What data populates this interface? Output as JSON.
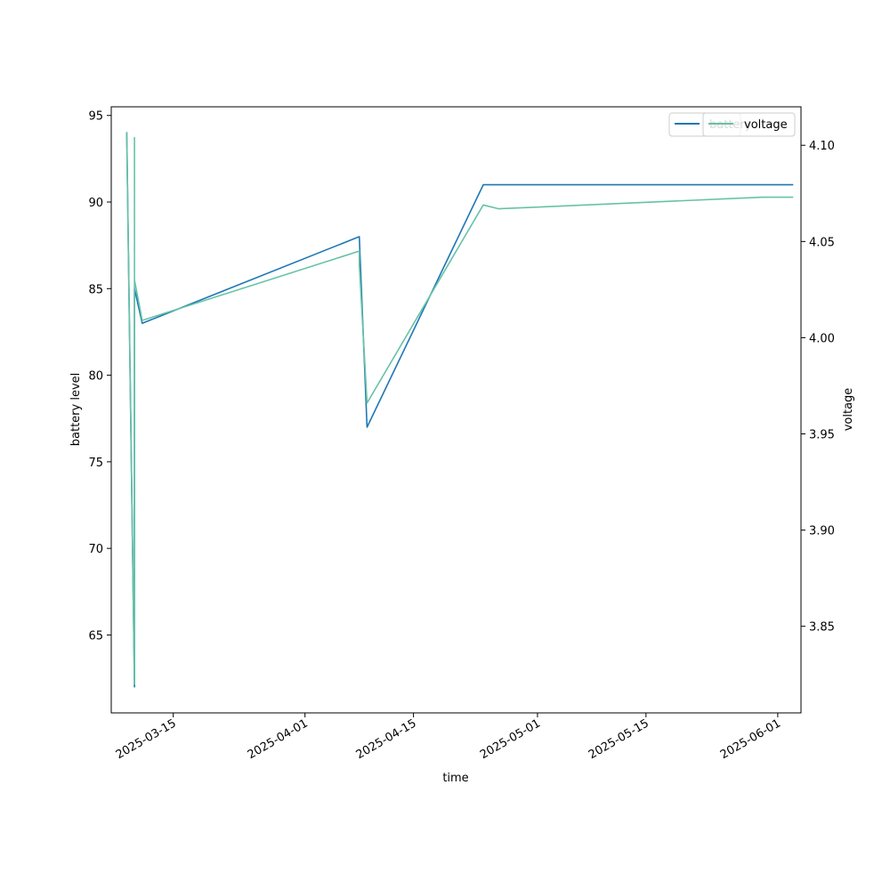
{
  "chart_data": {
    "type": "line",
    "xlabel": "time",
    "ylabel": "battery level",
    "y2label": "voltage",
    "xlim": [
      "2025-03-07",
      "2025-06-04"
    ],
    "ylim": [
      60.5,
      95.5
    ],
    "y2lim": [
      3.805,
      4.12
    ],
    "x_ticks": [
      "2025-03-15",
      "2025-04-01",
      "2025-04-15",
      "2025-05-01",
      "2025-05-15",
      "2025-06-01"
    ],
    "y_ticks": [
      65,
      70,
      75,
      80,
      85,
      90,
      95
    ],
    "y2_ticks": [
      "3.85",
      "3.90",
      "3.95",
      "4.00",
      "4.05",
      "4.10"
    ],
    "legend_location": "upper right",
    "grid": false,
    "series": [
      {
        "name": "battery",
        "axis": "left",
        "color": "#1f77b4",
        "x": [
          "2025-03-09",
          "2025-03-09",
          "2025-03-10",
          "2025-03-10",
          "2025-03-11",
          "2025-04-08",
          "2025-04-08",
          "2025-04-09",
          "2025-04-24",
          "2025-06-03"
        ],
        "values": [
          94,
          94,
          62,
          85,
          83,
          88,
          88,
          77,
          91,
          91
        ]
      },
      {
        "name": "voltage",
        "axis": "right",
        "color": "#66c2a5",
        "x": [
          "2025-03-09",
          "2025-03-09",
          "2025-03-10",
          "2025-03-10",
          "2025-03-10",
          "2025-03-11",
          "2025-04-08",
          "2025-04-08",
          "2025-04-09",
          "2025-04-24",
          "2025-04-26",
          "2025-05-30",
          "2025-06-03"
        ],
        "values": [
          4.107,
          4.107,
          3.82,
          4.104,
          4.03,
          4.009,
          4.045,
          4.038,
          3.966,
          4.069,
          4.067,
          4.073,
          4.073
        ]
      }
    ]
  }
}
